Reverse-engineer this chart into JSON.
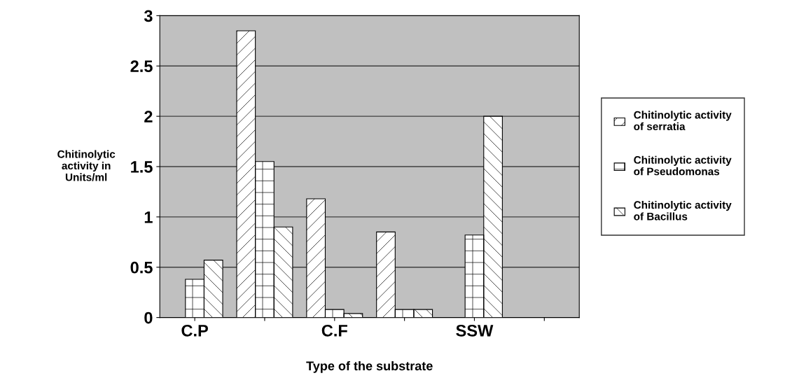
{
  "chart_data": {
    "type": "bar",
    "xlabel": "Type of the substrate",
    "ylabel": "Chitinolytic\nactivity in\nUnits/ml",
    "categories": [
      "C.P",
      null,
      "C.F",
      null,
      "SSW",
      null
    ],
    "series": [
      {
        "name": "Chitinolytic activity\nof serratia",
        "color": "#ffffff",
        "values": [
          0,
          2.85,
          1.18,
          0.85,
          0,
          0
        ]
      },
      {
        "name": "Chitinolytic activity\nof Pseudomonas",
        "color": "#ffffff",
        "values": [
          0.38,
          1.55,
          0.08,
          0.08,
          0.82,
          0
        ]
      },
      {
        "name": "Chitinolytic activity\nof Bacillus",
        "color": "#ffffff",
        "values": [
          0.57,
          0.9,
          0.04,
          0.08,
          2.0,
          0
        ]
      }
    ],
    "ylim": [
      0,
      3
    ],
    "yticks": [
      0,
      0.5,
      1,
      1.5,
      2,
      2.5,
      3
    ],
    "grid": "y",
    "legend": "right"
  }
}
